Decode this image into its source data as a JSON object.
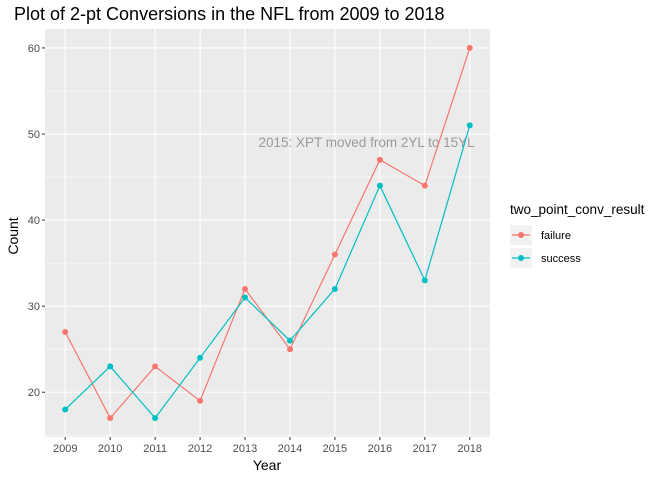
{
  "chart_data": {
    "type": "line",
    "title": "Plot of 2-pt Conversions in the NFL from 2009 to 2018",
    "xlabel": "Year",
    "ylabel": "Count",
    "x": [
      2009,
      2010,
      2011,
      2012,
      2013,
      2014,
      2015,
      2016,
      2017,
      2018
    ],
    "xlim": [
      2008.55,
      2018.45
    ],
    "ylim": [
      14.8,
      62.2
    ],
    "y_ticks": [
      20,
      30,
      40,
      50,
      60
    ],
    "grid": true,
    "legend": {
      "title": "two_point_conv_result",
      "placement": "right"
    },
    "series": [
      {
        "name": "failure",
        "color": "#F8766D",
        "values": [
          27,
          17,
          23,
          19,
          32,
          25,
          36,
          47,
          44,
          60
        ]
      },
      {
        "name": "success",
        "color": "#00BFC4",
        "values": [
          18,
          23,
          17,
          24,
          31,
          26,
          32,
          44,
          33,
          51
        ]
      }
    ],
    "annotations": [
      {
        "text": "2015: XPT moved from 2YL to 15YL",
        "x": 2013.3,
        "y": 48.5
      }
    ]
  }
}
